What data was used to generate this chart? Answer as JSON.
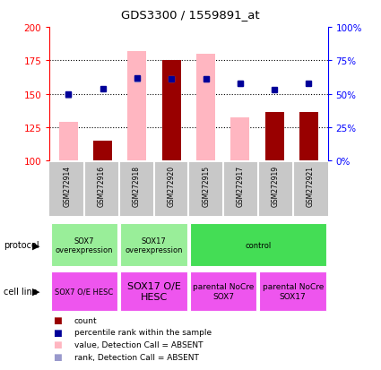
{
  "title": "GDS3300 / 1559891_at",
  "samples": [
    "GSM272914",
    "GSM272916",
    "GSM272918",
    "GSM272920",
    "GSM272915",
    "GSM272917",
    "GSM272919",
    "GSM272921"
  ],
  "ylim_left": [
    100,
    200
  ],
  "ylim_right": [
    0,
    100
  ],
  "yticks_left": [
    100,
    125,
    150,
    175,
    200
  ],
  "yticks_right": [
    0,
    25,
    50,
    75,
    100
  ],
  "ytick_labels_right": [
    "0",
    "25",
    "50",
    "75",
    "100%"
  ],
  "bar_bottom": 100,
  "pink_bars": [
    129,
    115,
    182,
    175,
    180,
    132,
    100,
    136
  ],
  "red_bars": [
    100,
    115,
    100,
    175,
    100,
    100,
    136,
    136
  ],
  "blue_squares": [
    150,
    154,
    162,
    161,
    161,
    158,
    153,
    158
  ],
  "light_blue_squares": [
    149,
    null,
    161,
    161,
    161,
    158,
    null,
    null
  ],
  "pink_bar_color": "#FFB6C1",
  "red_bar_color": "#990000",
  "blue_sq_color": "#000099",
  "light_blue_sq_color": "#9999CC",
  "dotted_lines": [
    125,
    150,
    175
  ],
  "protocol_groups": [
    {
      "label": "SOX7\noverexpression",
      "start": 0,
      "end": 2,
      "color": "#99EE99"
    },
    {
      "label": "SOX17\noverexpression",
      "start": 2,
      "end": 4,
      "color": "#99EE99"
    },
    {
      "label": "control",
      "start": 4,
      "end": 8,
      "color": "#44DD55"
    }
  ],
  "cell_line_groups": [
    {
      "label": "SOX7 O/E HESC",
      "fontsize": 6.0,
      "start": 0,
      "end": 2
    },
    {
      "label": "SOX17 O/E\nHESC",
      "fontsize": 8.0,
      "start": 2,
      "end": 4
    },
    {
      "label": "parental NoCre\nSOX7",
      "fontsize": 6.5,
      "start": 4,
      "end": 6
    },
    {
      "label": "parental NoCre\nSOX17",
      "fontsize": 6.5,
      "start": 6,
      "end": 8
    }
  ],
  "cell_line_color": "#EE55EE",
  "gray_color": "#C8C8C8",
  "legend_labels": [
    "count",
    "percentile rank within the sample",
    "value, Detection Call = ABSENT",
    "rank, Detection Call = ABSENT"
  ],
  "legend_colors": [
    "#990000",
    "#000099",
    "#FFB6C1",
    "#9999CC"
  ]
}
